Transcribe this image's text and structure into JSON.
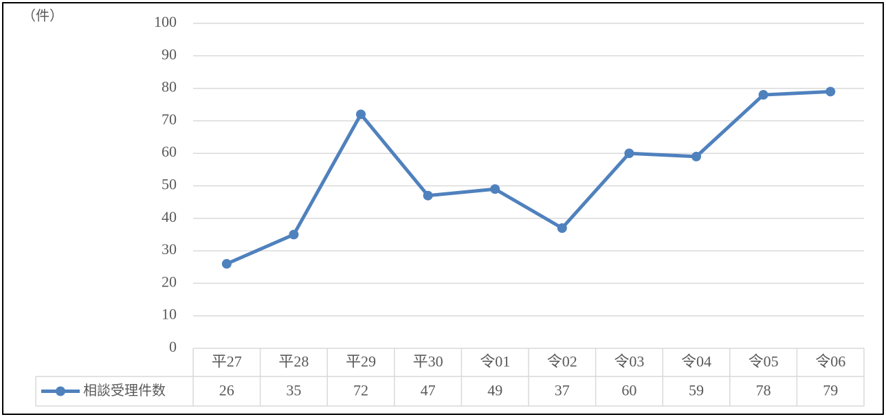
{
  "chart_data": {
    "type": "line",
    "y_unit_label": "（件）",
    "categories": [
      "平27",
      "平28",
      "平29",
      "平30",
      "令01",
      "令02",
      "令03",
      "令04",
      "令05",
      "令06"
    ],
    "series": [
      {
        "name": "相談受理件数",
        "color": "#4f81bd",
        "values": [
          26,
          35,
          72,
          47,
          49,
          37,
          60,
          59,
          78,
          79
        ]
      }
    ],
    "ylim": [
      0,
      100
    ],
    "yticks": [
      0,
      10,
      20,
      30,
      40,
      50,
      60,
      70,
      80,
      90,
      100
    ],
    "grid": true
  }
}
